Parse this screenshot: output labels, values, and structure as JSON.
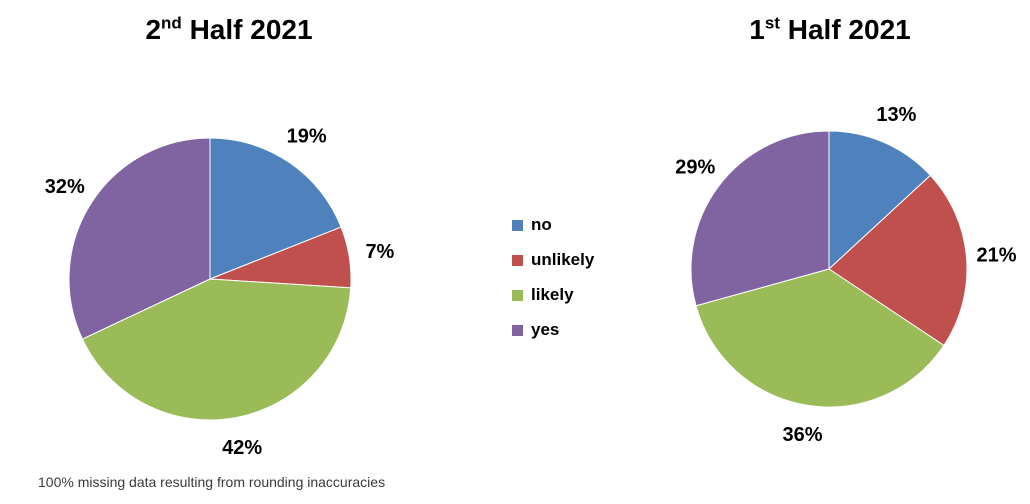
{
  "page": {
    "background": "#ffffff",
    "footnote": "100% missing data resulting from rounding inaccuracies"
  },
  "legend": {
    "position": "between-charts",
    "items": [
      {
        "label": "no",
        "color": "#4F81BD"
      },
      {
        "label": "unlikely",
        "color": "#C0504D"
      },
      {
        "label": "likely",
        "color": "#9BBB59"
      },
      {
        "label": "yes",
        "color": "#8064A2"
      }
    ]
  },
  "chart_data": [
    {
      "type": "pie",
      "title": "2nd Half 2021",
      "title_parts": {
        "prefix": "2",
        "superscript": "nd",
        "suffix": " Half 2021"
      },
      "categories": [
        "no",
        "unlikely",
        "likely",
        "yes"
      ],
      "values": [
        19,
        7,
        42,
        32
      ],
      "labels": [
        "19%",
        "7%",
        "42%",
        "32%"
      ],
      "colors": [
        "#4F81BD",
        "#C0504D",
        "#9BBB59",
        "#8064A2"
      ],
      "value_unit": "%",
      "start_angle_deg": 0,
      "direction": "clockwise",
      "legend_entries": [
        "no",
        "unlikely",
        "likely",
        "yes"
      ]
    },
    {
      "type": "pie",
      "title": "1st Half 2021",
      "title_parts": {
        "prefix": "1",
        "superscript": "st",
        "suffix": " Half 2021"
      },
      "categories": [
        "no",
        "unlikely",
        "likely",
        "yes"
      ],
      "values": [
        13,
        21,
        36,
        29
      ],
      "labels": [
        "13%",
        "21%",
        "36%",
        "29%"
      ],
      "colors": [
        "#4F81BD",
        "#C0504D",
        "#9BBB59",
        "#8064A2"
      ],
      "value_unit": "%",
      "start_angle_deg": 0,
      "direction": "clockwise",
      "legend_entries": [
        "no",
        "unlikely",
        "likely",
        "yes"
      ]
    }
  ]
}
